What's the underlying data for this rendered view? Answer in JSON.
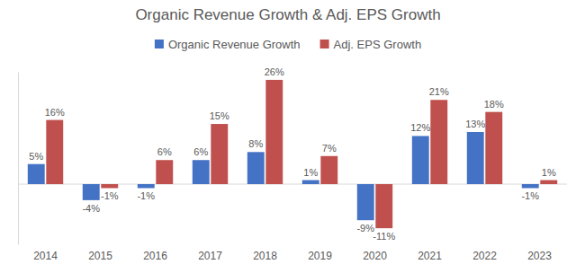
{
  "chart_data": {
    "type": "bar",
    "title": "Organic Revenue Growth & Adj. EPS Growth",
    "categories": [
      "2014",
      "2015",
      "2016",
      "2017",
      "2018",
      "2019",
      "2020",
      "2021",
      "2022",
      "2023"
    ],
    "series": [
      {
        "name": "Organic Revenue Growth",
        "color": "#4472c4",
        "values": [
          5,
          -4,
          -1,
          6,
          8,
          1,
          -9,
          12,
          13,
          -1
        ],
        "value_labels": [
          "5%",
          "-4%",
          "-1%",
          "6%",
          "8%",
          "1%",
          "-9%",
          "12%",
          "13%",
          "-1%"
        ]
      },
      {
        "name": "Adj. EPS Growth",
        "color": "#c0504d",
        "values": [
          16,
          -1,
          6,
          15,
          26,
          7,
          -11,
          21,
          18,
          1
        ],
        "value_labels": [
          "16%",
          "-1%",
          "6%",
          "15%",
          "26%",
          "7%",
          "-11%",
          "21%",
          "18%",
          "1%"
        ]
      }
    ],
    "ylim": [
      -15,
      28
    ],
    "yticks": [
      0
    ],
    "grid": true,
    "legend": "top",
    "data_labels": true,
    "tick_labels": "x"
  }
}
